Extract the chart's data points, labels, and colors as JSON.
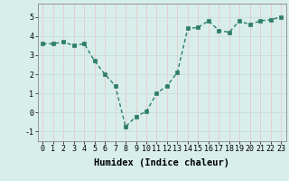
{
  "x": [
    0,
    1,
    2,
    3,
    4,
    5,
    6,
    7,
    8,
    9,
    10,
    11,
    12,
    13,
    14,
    15,
    16,
    17,
    18,
    19,
    20,
    21,
    22,
    23
  ],
  "y": [
    3.6,
    3.6,
    3.7,
    3.5,
    3.6,
    2.7,
    2.0,
    1.4,
    -0.75,
    -0.2,
    0.05,
    1.0,
    1.4,
    2.1,
    4.4,
    4.45,
    4.8,
    4.3,
    4.2,
    4.8,
    4.6,
    4.8,
    4.85,
    5.0
  ],
  "xlabel": "Humidex (Indice chaleur)",
  "xlim": [
    -0.5,
    23.5
  ],
  "ylim": [
    -1.5,
    5.7
  ],
  "yticks": [
    -1,
    0,
    1,
    2,
    3,
    4,
    5
  ],
  "xticks": [
    0,
    1,
    2,
    3,
    4,
    5,
    6,
    7,
    8,
    9,
    10,
    11,
    12,
    13,
    14,
    15,
    16,
    17,
    18,
    19,
    20,
    21,
    22,
    23
  ],
  "line_color": "#2d7d6b",
  "marker_color": "#2d7d6b",
  "bg_color": "#d8eeeb",
  "grid_color_v": "#e8c8c8",
  "grid_color_h": "#c8dcd8",
  "xlabel_fontsize": 7.5,
  "tick_fontsize": 6,
  "marker_size": 2.5,
  "line_width": 1.0
}
